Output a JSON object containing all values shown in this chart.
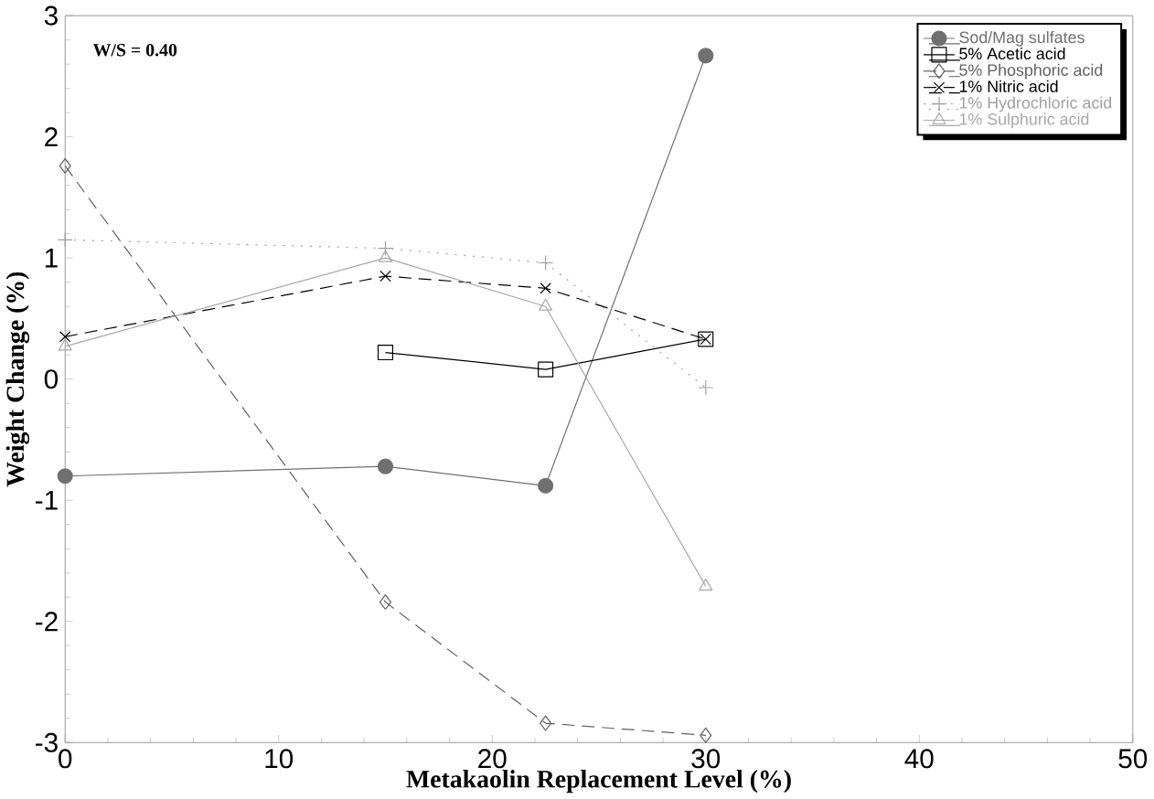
{
  "chart_data": {
    "type": "line",
    "xlabel": "Metakaolin Replacement Level (%)",
    "ylabel": "Weight Change (%)",
    "annotations": [
      "W/S = 0.40"
    ],
    "x": [
      0,
      15,
      22.5,
      30
    ],
    "xlim": [
      0,
      50
    ],
    "ylim": [
      -3,
      3
    ],
    "xticks": [
      0,
      10,
      20,
      30,
      40,
      50
    ],
    "yticks": [
      -3,
      -2,
      -1,
      0,
      1,
      2,
      3
    ],
    "grid": false,
    "legend": "top right",
    "series": [
      {
        "name": "Sod/Mag sulfates",
        "color": "#707070",
        "values": [
          -0.8,
          -0.72,
          -0.88,
          2.67
        ],
        "marker": "circle",
        "line_style": "solid"
      },
      {
        "name": "5% Acetic acid",
        "color": "#000000",
        "values": [
          null,
          0.22,
          0.08,
          0.33
        ],
        "marker": "square",
        "line_style": "solid"
      },
      {
        "name": "5% Phosphoric acid",
        "color": "#606060",
        "values": [
          1.76,
          -1.84,
          -2.84,
          -2.94
        ],
        "marker": "diamond",
        "line_style": "dashed"
      },
      {
        "name": "1% Nitric acid",
        "color": "#000000",
        "values": [
          0.35,
          0.85,
          0.75,
          0.33
        ],
        "marker": "cross",
        "line_style": "dashed"
      },
      {
        "name": "1% Hydrochloric acid",
        "color": "#a0a0a0",
        "values": [
          1.15,
          1.08,
          0.96,
          -0.07
        ],
        "marker": "plus",
        "line_style": "dotted"
      },
      {
        "name": "1% Sulphuric acid",
        "color": "#a8a8a8",
        "values": [
          0.27,
          1.0,
          0.6,
          -1.71
        ],
        "marker": "triangle",
        "line_style": "solid"
      }
    ]
  }
}
